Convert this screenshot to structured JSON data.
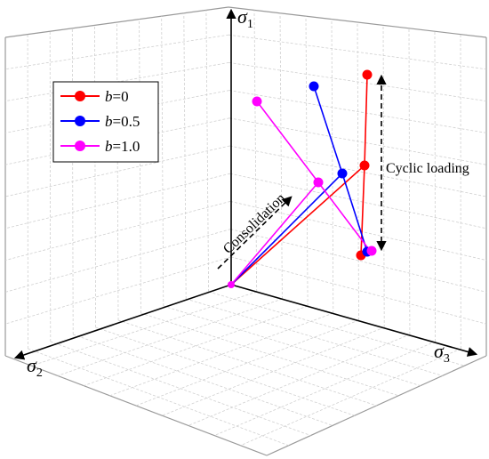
{
  "axes": {
    "sigma1": {
      "symbol": "σ",
      "subscript": "1"
    },
    "sigma2": {
      "symbol": "σ",
      "subscript": "2"
    },
    "sigma3": {
      "symbol": "σ",
      "subscript": "3"
    }
  },
  "legend": {
    "items": [
      {
        "var": "b",
        "eq": "=0",
        "color": "#ff0000"
      },
      {
        "var": "b",
        "eq": "=0.5",
        "color": "#0000ff"
      },
      {
        "var": "b",
        "eq": "=1.0",
        "color": "#ff00ff"
      }
    ]
  },
  "annotations": {
    "consolidation": "Consolidation",
    "cyclic_loading": "Cyclic loading"
  },
  "colors": {
    "b0": "#ff0000",
    "b05": "#0000ff",
    "b10": "#ff00ff",
    "grid": "#d0d0d0",
    "axis": "#000000"
  }
}
